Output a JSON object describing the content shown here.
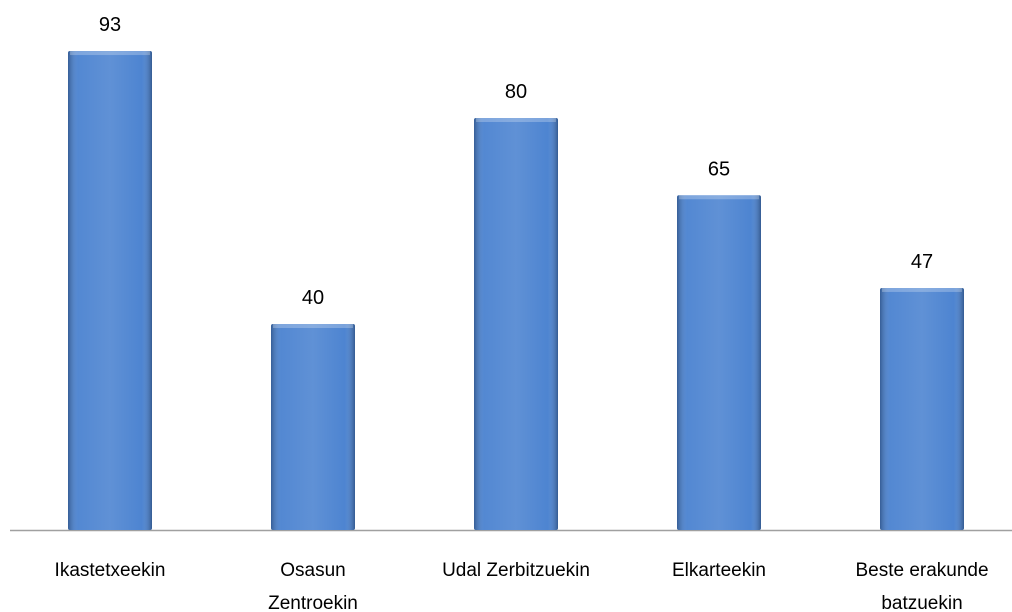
{
  "chart_data": {
    "type": "bar",
    "categories": [
      "Ikastetxeekin",
      "Osasun Zentroekin",
      "Udal Zerbitzuekin",
      "Elkarteekin",
      "Beste erakunde batzuekin"
    ],
    "values": [
      93,
      40,
      80,
      65,
      47
    ],
    "color": "#4a82d0"
  }
}
